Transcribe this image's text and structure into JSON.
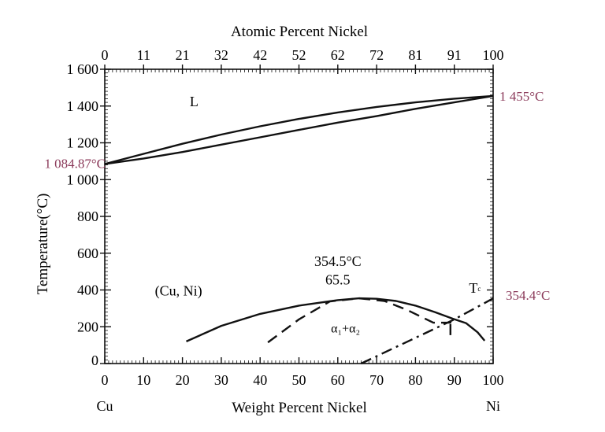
{
  "chart_data": {
    "type": "line",
    "xlabel": "Weight Percent Nickel",
    "x2label": "Atomic Percent Nickel",
    "ylabel": "Temperature(°C)",
    "xlim": [
      0,
      100
    ],
    "ylim": [
      0,
      1600
    ],
    "x_ticks": [
      "0",
      "10",
      "20",
      "30",
      "40",
      "50",
      "60",
      "70",
      "80",
      "90",
      "100"
    ],
    "x2_ticks": [
      "0",
      "11",
      "21",
      "32",
      "42",
      "52",
      "62",
      "72",
      "81",
      "91",
      "100"
    ],
    "y_ticks": [
      {
        "value": 0,
        "label": "0"
      },
      {
        "value": 200,
        "label": "200"
      },
      {
        "value": 400,
        "label": "400"
      },
      {
        "value": 600,
        "label": "600"
      },
      {
        "value": 800,
        "label": "800"
      },
      {
        "value": 1000,
        "label": "1 000"
      },
      {
        "value": 1200,
        "label": "1 200"
      },
      {
        "value": 1400,
        "label": "1 400"
      },
      {
        "value": 1600,
        "label": "1 600"
      }
    ],
    "end_labels": {
      "left": "Cu",
      "right": "Ni"
    },
    "series": [
      {
        "style": "solid",
        "x": [
          0,
          10,
          20,
          30,
          40,
          50,
          60,
          70,
          80,
          90,
          100
        ],
        "y": [
          1084.87,
          1140,
          1195,
          1245,
          1290,
          1330,
          1365,
          1395,
          1420,
          1440,
          1455
        ]
      },
      {
        "style": "solid",
        "x": [
          0,
          10,
          20,
          30,
          40,
          50,
          60,
          70,
          80,
          90,
          100
        ],
        "y": [
          1084.87,
          1115,
          1150,
          1190,
          1230,
          1270,
          1310,
          1345,
          1385,
          1420,
          1455
        ]
      },
      {
        "style": "solid",
        "x": [
          21,
          30,
          40,
          50,
          60,
          65.5,
          70,
          75,
          80,
          85,
          89.6,
          93,
          96,
          97.8
        ],
        "y": [
          120,
          205,
          270,
          315,
          345,
          354.5,
          352,
          340,
          315,
          280,
          244,
          220,
          170,
          124
        ]
      },
      {
        "style": "dashed",
        "x": [
          42,
          50,
          58,
          65.5,
          72,
          78,
          84.6,
          89,
          89,
          89
        ],
        "y": [
          115,
          240,
          338,
          354.5,
          340,
          290,
          222,
          222,
          240,
          125
        ]
      },
      {
        "style": "dashdot",
        "x": [
          66,
          80,
          90,
          100
        ],
        "y": [
          0,
          140,
          240,
          354.4
        ]
      }
    ],
    "annotations": [
      {
        "text": "L",
        "x": 23,
        "y": 1400
      },
      {
        "text": "(Cu, Ni)",
        "x": 19,
        "y": 370
      },
      {
        "text": "354.5°C",
        "x": 60,
        "y": 530
      },
      {
        "text": "65.5",
        "x": 60,
        "y": 430
      },
      {
        "text": "α₁+α₂",
        "x": 62,
        "y": 170
      },
      {
        "text": "Tc",
        "x": 95,
        "y": 385
      }
    ],
    "side_labels": {
      "left_melt": "1 084.87°C",
      "right_melt": "1 455°C",
      "right_tc": "354.4°C"
    },
    "colors": {
      "axis": "#111111",
      "label_accent": "#8b3a5a"
    }
  }
}
